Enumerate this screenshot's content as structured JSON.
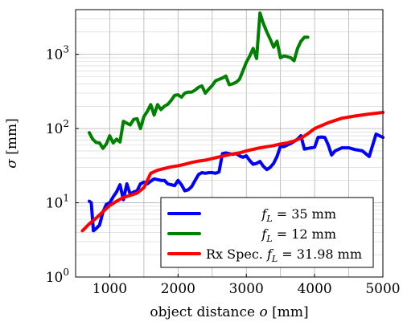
{
  "chart_data": {
    "type": "line",
    "xlabel": "object distance o [mm]",
    "ylabel": "σ [mm]",
    "xlim": [
      500,
      5000
    ],
    "ylim": [
      1,
      4000
    ],
    "yscale": "log",
    "grid": true,
    "legend_position": "bottom-right",
    "xticks": [
      1000,
      2000,
      3000,
      4000,
      5000
    ],
    "xtick_labels": [
      "1000",
      "2000",
      "3000",
      "4000",
      "5000"
    ],
    "yticks": [
      1,
      10,
      100,
      1000
    ],
    "ytick_labels": [
      {
        "base": "10",
        "exp": "0"
      },
      {
        "base": "10",
        "exp": "1"
      },
      {
        "base": "10",
        "exp": "2"
      },
      {
        "base": "10",
        "exp": "3"
      }
    ],
    "series": [
      {
        "name": "f_L = 35 mm",
        "legend": {
          "pre": "",
          "var": "f",
          "sub": "L",
          "post": " = 35 mm"
        },
        "color": "#0000ff",
        "x": [
          700,
          730,
          760,
          800,
          850,
          900,
          950,
          1000,
          1050,
          1100,
          1150,
          1200,
          1250,
          1300,
          1350,
          1400,
          1450,
          1500,
          1550,
          1600,
          1650,
          1700,
          1750,
          1800,
          1850,
          1900,
          1950,
          2000,
          2050,
          2100,
          2150,
          2200,
          2250,
          2300,
          2350,
          2400,
          2450,
          2500,
          2550,
          2600,
          2650,
          2700,
          2750,
          2800,
          2850,
          2900,
          2950,
          3000,
          3050,
          3100,
          3150,
          3200,
          3250,
          3300,
          3350,
          3400,
          3450,
          3500,
          3550,
          3600,
          3650,
          3700,
          3750,
          3800,
          3850,
          3900,
          3950,
          4000,
          4050,
          4100,
          4150,
          4200,
          4250,
          4300,
          4400,
          4500,
          4600,
          4700,
          4800,
          4900,
          5000
        ],
        "y": [
          10.5,
          10,
          4.2,
          4.5,
          5.0,
          7.5,
          9.5,
          10.0,
          12.0,
          14.0,
          17.5,
          11.0,
          18.0,
          13.0,
          14.0,
          14.5,
          18.0,
          19.0,
          18.0,
          19.5,
          21.0,
          20.5,
          20.0,
          20.0,
          18.0,
          17.5,
          17.0,
          20.0,
          17.5,
          14.5,
          15.0,
          16.5,
          20.0,
          24.0,
          25.5,
          25.0,
          25.5,
          25.5,
          25.0,
          26.0,
          46.0,
          47.0,
          46.0,
          45.0,
          46.0,
          43.0,
          41.0,
          43.0,
          37.0,
          33.0,
          34.0,
          36.0,
          31.0,
          28.0,
          30.0,
          34.0,
          42.0,
          58.0,
          57.0,
          60.0,
          63.0,
          67.0,
          72.0,
          80.0,
          53.0,
          54.0,
          55.0,
          56.0,
          76.0,
          77.0,
          76.0,
          60.0,
          44.0,
          50.0,
          55.0,
          55.0,
          52.0,
          50.0,
          42.0,
          84.0,
          76.0
        ]
      },
      {
        "name": "f_L = 12 mm",
        "legend": {
          "pre": "",
          "var": "f",
          "sub": "L",
          "post": " = 12 mm"
        },
        "color": "#008000",
        "x": [
          700,
          750,
          800,
          850,
          900,
          950,
          1000,
          1050,
          1100,
          1150,
          1200,
          1250,
          1300,
          1350,
          1400,
          1450,
          1500,
          1550,
          1600,
          1650,
          1700,
          1750,
          1800,
          1850,
          1900,
          1950,
          2000,
          2050,
          2100,
          2150,
          2200,
          2250,
          2300,
          2350,
          2400,
          2450,
          2500,
          2550,
          2600,
          2650,
          2700,
          2750,
          2800,
          2850,
          2900,
          2950,
          3000,
          3050,
          3100,
          3150,
          3200,
          3250,
          3300,
          3350,
          3400,
          3450,
          3500,
          3550,
          3600,
          3650,
          3700,
          3750,
          3800,
          3850,
          3900
        ],
        "y": [
          88,
          72,
          65,
          64,
          54,
          62,
          80,
          64,
          72,
          66,
          125,
          118,
          112,
          133,
          136,
          100,
          145,
          170,
          210,
          152,
          210,
          180,
          200,
          212,
          240,
          280,
          285,
          265,
          300,
          310,
          310,
          330,
          360,
          375,
          300,
          340,
          380,
          440,
          460,
          480,
          510,
          390,
          400,
          420,
          460,
          600,
          780,
          950,
          1200,
          880,
          3600,
          2600,
          2000,
          1600,
          1250,
          1500,
          900,
          950,
          930,
          900,
          820,
          1200,
          1500,
          1700,
          1700
        ],
        "x2": null
      },
      {
        "name": "Rx Spec. f_L = 31.98 mm",
        "legend": {
          "pre": "Rx Spec. ",
          "var": "f",
          "sub": "L",
          "post": " = 31.98 mm"
        },
        "color": "#ff0000",
        "x": [
          600,
          700,
          800,
          900,
          1000,
          1100,
          1200,
          1300,
          1400,
          1500,
          1600,
          1700,
          1800,
          1900,
          2000,
          2100,
          2200,
          2300,
          2400,
          2500,
          2600,
          2700,
          2800,
          2900,
          3000,
          3100,
          3200,
          3300,
          3400,
          3500,
          3600,
          3700,
          3800,
          3900,
          4000,
          4200,
          4400,
          4600,
          4800,
          5000
        ],
        "y": [
          4.2,
          5.2,
          6.2,
          7.6,
          9.2,
          10.5,
          11.8,
          12.6,
          13.5,
          16.0,
          25.0,
          27.5,
          29.0,
          30.5,
          31.5,
          33.0,
          35.0,
          36.5,
          37.5,
          39.5,
          41.5,
          43.5,
          45.5,
          47.0,
          50.0,
          52.5,
          55.0,
          57.0,
          59.0,
          62.0,
          64.0,
          68.0,
          74.0,
          85.0,
          100.0,
          120.0,
          138.0,
          148.0,
          157.0,
          165.0
        ]
      }
    ]
  }
}
